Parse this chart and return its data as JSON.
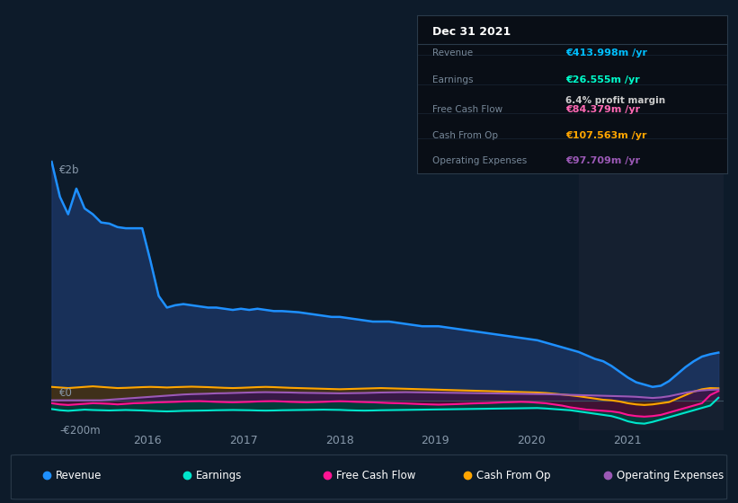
{
  "bg_color": "#0d1b2a",
  "plot_bg_color": "#0d1b2a",
  "grid_color": "#1e3050",
  "title_date": "Dec 31 2021",
  "info_box": {
    "Revenue": {
      "label": "Revenue",
      "value": "€413.998m /yr",
      "color": "#00bfff"
    },
    "Earnings": {
      "label": "Earnings",
      "value": "€26.555m /yr",
      "color": "#00ffcc"
    },
    "Free Cash Flow": {
      "label": "Free Cash Flow",
      "value": "€84.379m /yr",
      "color": "#ff69b4"
    },
    "Cash From Op": {
      "label": "Cash From Op",
      "value": "€107.563m /yr",
      "color": "#ffa500"
    },
    "Operating Expenses": {
      "label": "Operating Expenses",
      "value": "€97.709m /yr",
      "color": "#9b59b6"
    }
  },
  "profit_margin_text": "6.4% profit margin",
  "x_labels": [
    "2016",
    "2017",
    "2018",
    "2019",
    "2020",
    "2021"
  ],
  "xlim": [
    2015.0,
    2022.0
  ],
  "ylim": [
    -250,
    2100
  ],
  "shaded_region_x": 2020.5,
  "shaded_region_color": "#152030",
  "series": {
    "Revenue": {
      "color": "#1e90ff",
      "fill_color": "#1e3a6e",
      "lw": 1.8,
      "values": [
        2050,
        1750,
        1600,
        1820,
        1650,
        1600,
        1530,
        1520,
        1490,
        1480,
        1480,
        1480,
        1200,
        900,
        800,
        820,
        830,
        820,
        810,
        800,
        800,
        790,
        780,
        790,
        780,
        790,
        780,
        770,
        770,
        765,
        760,
        750,
        740,
        730,
        720,
        720,
        710,
        700,
        690,
        680,
        680,
        680,
        670,
        660,
        650,
        640,
        640,
        640,
        630,
        620,
        610,
        600,
        590,
        580,
        570,
        560,
        550,
        540,
        530,
        520,
        500,
        480,
        460,
        440,
        420,
        390,
        360,
        340,
        300,
        250,
        200,
        160,
        140,
        120,
        130,
        170,
        230,
        290,
        340,
        380,
        400,
        414
      ]
    },
    "Earnings": {
      "color": "#00e5cc",
      "fill_color": "#004a40",
      "lw": 1.5,
      "values": [
        -70,
        -80,
        -85,
        -80,
        -75,
        -78,
        -80,
        -82,
        -80,
        -78,
        -80,
        -82,
        -85,
        -88,
        -90,
        -88,
        -85,
        -84,
        -83,
        -82,
        -80,
        -79,
        -78,
        -79,
        -80,
        -82,
        -83,
        -82,
        -80,
        -79,
        -78,
        -77,
        -76,
        -75,
        -76,
        -77,
        -80,
        -82,
        -83,
        -82,
        -80,
        -79,
        -78,
        -77,
        -76,
        -75,
        -74,
        -73,
        -72,
        -71,
        -70,
        -69,
        -68,
        -67,
        -66,
        -65,
        -64,
        -63,
        -62,
        -61,
        -65,
        -70,
        -75,
        -80,
        -90,
        -100,
        -110,
        -120,
        -130,
        -150,
        -175,
        -190,
        -195,
        -180,
        -160,
        -140,
        -120,
        -100,
        -80,
        -60,
        -40,
        27
      ]
    },
    "Free Cash Flow": {
      "color": "#ff1493",
      "fill_color": "#5a0030",
      "lw": 1.5,
      "values": [
        -20,
        -30,
        -35,
        -30,
        -25,
        -20,
        -22,
        -25,
        -30,
        -25,
        -20,
        -18,
        -15,
        -12,
        -10,
        -8,
        -5,
        -3,
        -2,
        -5,
        -8,
        -10,
        -12,
        -10,
        -8,
        -5,
        -3,
        -2,
        -5,
        -8,
        -10,
        -12,
        -10,
        -8,
        -5,
        -3,
        -5,
        -8,
        -10,
        -12,
        -15,
        -18,
        -20,
        -22,
        -25,
        -28,
        -30,
        -32,
        -30,
        -28,
        -25,
        -22,
        -20,
        -18,
        -15,
        -12,
        -10,
        -8,
        -10,
        -15,
        -20,
        -30,
        -40,
        -55,
        -65,
        -75,
        -80,
        -85,
        -90,
        -100,
        -120,
        -130,
        -135,
        -130,
        -120,
        -100,
        -80,
        -60,
        -40,
        -20,
        50,
        84
      ]
    },
    "Cash From Op": {
      "color": "#ffa500",
      "fill_color": "#503000",
      "lw": 1.5,
      "values": [
        120,
        115,
        110,
        115,
        120,
        125,
        120,
        115,
        110,
        112,
        115,
        118,
        120,
        118,
        115,
        118,
        120,
        122,
        120,
        118,
        115,
        112,
        110,
        112,
        115,
        118,
        120,
        118,
        115,
        112,
        110,
        108,
        106,
        104,
        102,
        100,
        102,
        104,
        106,
        108,
        110,
        108,
        106,
        104,
        102,
        100,
        98,
        96,
        94,
        92,
        90,
        88,
        86,
        84,
        82,
        80,
        78,
        76,
        74,
        72,
        68,
        62,
        55,
        48,
        40,
        30,
        20,
        10,
        5,
        -5,
        -20,
        -30,
        -35,
        -30,
        -20,
        -10,
        20,
        50,
        80,
        100,
        110,
        108
      ]
    },
    "Operating Expenses": {
      "color": "#9b59b6",
      "fill_color": "#35105a",
      "lw": 1.5,
      "values": [
        5,
        5,
        5,
        5,
        5,
        5,
        5,
        10,
        15,
        20,
        25,
        30,
        35,
        40,
        45,
        50,
        55,
        58,
        60,
        62,
        65,
        66,
        68,
        70,
        72,
        74,
        75,
        74,
        73,
        72,
        70,
        69,
        68,
        67,
        66,
        65,
        66,
        67,
        68,
        70,
        72,
        73,
        74,
        75,
        74,
        73,
        72,
        71,
        70,
        69,
        68,
        67,
        66,
        65,
        64,
        63,
        62,
        61,
        60,
        59,
        58,
        56,
        54,
        52,
        50,
        48,
        46,
        44,
        42,
        40,
        38,
        35,
        30,
        25,
        30,
        40,
        55,
        70,
        82,
        90,
        95,
        98
      ]
    }
  },
  "legend": [
    {
      "label": "Revenue",
      "color": "#1e90ff"
    },
    {
      "label": "Earnings",
      "color": "#00e5cc"
    },
    {
      "label": "Free Cash Flow",
      "color": "#ff1493"
    },
    {
      "label": "Cash From Op",
      "color": "#ffa500"
    },
    {
      "label": "Operating Expenses",
      "color": "#9b59b6"
    }
  ]
}
